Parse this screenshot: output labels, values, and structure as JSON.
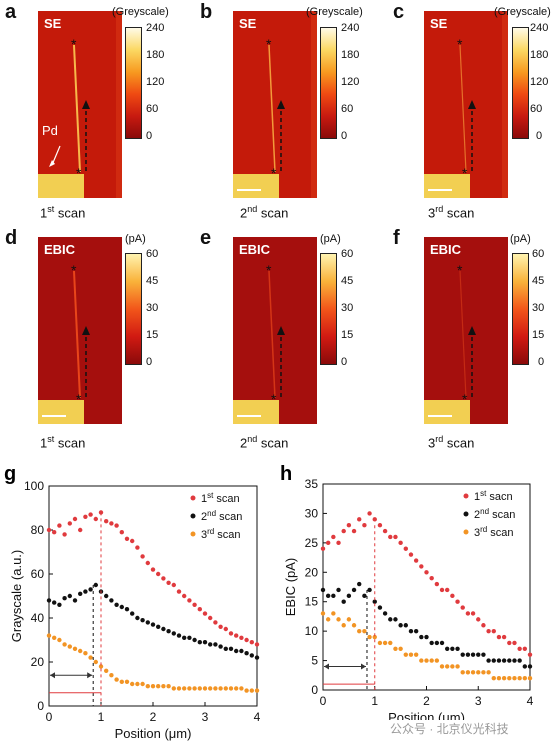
{
  "panels": {
    "a": {
      "label": "a",
      "mode": "SE",
      "unit": "(Greyscale)",
      "ticks": [
        "240",
        "180",
        "120",
        "60",
        "0"
      ],
      "scan_num": "1",
      "scan_sup": "st",
      "scan_word": "scan",
      "pd": "Pd"
    },
    "b": {
      "label": "b",
      "mode": "SE",
      "unit": "(Greyscale)",
      "ticks": [
        "240",
        "180",
        "120",
        "60",
        "0"
      ],
      "scan_num": "2",
      "scan_sup": "nd",
      "scan_word": "scan"
    },
    "c": {
      "label": "c",
      "mode": "SE",
      "unit": "(Greyscale)",
      "ticks": [
        "240",
        "180",
        "120",
        "60",
        "0"
      ],
      "scan_num": "3",
      "scan_sup": "rd",
      "scan_word": "scan"
    },
    "d": {
      "label": "d",
      "mode": "EBIC",
      "unit": "(pA)",
      "ticks": [
        "60",
        "45",
        "30",
        "15",
        "0"
      ],
      "scan_num": "1",
      "scan_sup": "st",
      "scan_word": "scan"
    },
    "e": {
      "label": "e",
      "mode": "EBIC",
      "unit": "(pA)",
      "ticks": [
        "60",
        "45",
        "30",
        "15",
        "0"
      ],
      "scan_num": "2",
      "scan_sup": "nd",
      "scan_word": "scan"
    },
    "f": {
      "label": "f",
      "mode": "EBIC",
      "unit": "(pA)",
      "ticks": [
        "60",
        "45",
        "30",
        "15",
        "0"
      ],
      "scan_num": "3",
      "scan_sup": "rd",
      "scan_word": "scan"
    }
  },
  "watermark": "公众号 · 北京仪光科技",
  "colors": {
    "scan1": "#e03a3e",
    "scan2": "#111111",
    "scan3": "#f29424",
    "marker": "#e03a3e"
  },
  "chart_data": [
    {
      "panel": "g",
      "type": "scatter",
      "xlabel": "Position (μm)",
      "ylabel": "Grayscale (a.u.)",
      "xlim": [
        0,
        4
      ],
      "ylim": [
        0,
        100
      ],
      "xticks": [
        "0",
        "1",
        "2",
        "3",
        "4"
      ],
      "yticks": [
        "0",
        "20",
        "40",
        "60",
        "80",
        "100"
      ],
      "legend_position": "top-right",
      "arrow": {
        "from": 0,
        "to": 0.85,
        "y": 14
      },
      "marker": {
        "from": 0,
        "to": 1.0,
        "y": 6
      },
      "vlines": [
        {
          "x": 0.85,
          "to": 55,
          "color": "#111111"
        },
        {
          "x": 1.0,
          "to": 88,
          "color": "#e03a3e"
        }
      ],
      "series": [
        {
          "name_num": "1",
          "name_sup": "st",
          "name_word": "scan",
          "color": "#e03a3e",
          "x": [
            0.0,
            0.1,
            0.2,
            0.3,
            0.4,
            0.5,
            0.6,
            0.7,
            0.8,
            0.9,
            1.0,
            1.1,
            1.2,
            1.3,
            1.4,
            1.5,
            1.6,
            1.7,
            1.8,
            1.9,
            2.0,
            2.1,
            2.2,
            2.3,
            2.4,
            2.5,
            2.6,
            2.7,
            2.8,
            2.9,
            3.0,
            3.1,
            3.2,
            3.3,
            3.4,
            3.5,
            3.6,
            3.7,
            3.8,
            3.9,
            4.0
          ],
          "y": [
            80,
            79,
            82,
            78,
            83,
            85,
            80,
            86,
            87,
            85,
            88,
            84,
            83,
            82,
            79,
            76,
            75,
            72,
            68,
            65,
            62,
            60,
            58,
            56,
            55,
            52,
            50,
            48,
            46,
            44,
            42,
            40,
            38,
            36,
            35,
            33,
            32,
            31,
            30,
            29,
            28
          ]
        },
        {
          "name_num": "2",
          "name_sup": "nd",
          "name_word": "scan",
          "color": "#111111",
          "x": [
            0.0,
            0.1,
            0.2,
            0.3,
            0.4,
            0.5,
            0.6,
            0.7,
            0.8,
            0.9,
            1.0,
            1.1,
            1.2,
            1.3,
            1.4,
            1.5,
            1.6,
            1.7,
            1.8,
            1.9,
            2.0,
            2.1,
            2.2,
            2.3,
            2.4,
            2.5,
            2.6,
            2.7,
            2.8,
            2.9,
            3.0,
            3.1,
            3.2,
            3.3,
            3.4,
            3.5,
            3.6,
            3.7,
            3.8,
            3.9,
            4.0
          ],
          "y": [
            48,
            47,
            46,
            49,
            50,
            48,
            51,
            52,
            53,
            55,
            52,
            50,
            48,
            46,
            45,
            44,
            42,
            40,
            39,
            38,
            37,
            36,
            35,
            34,
            33,
            32,
            31,
            31,
            30,
            29,
            29,
            28,
            28,
            27,
            26,
            26,
            25,
            25,
            24,
            23,
            22
          ]
        },
        {
          "name_num": "3",
          "name_sup": "rd",
          "name_word": "scan",
          "color": "#f29424",
          "x": [
            0.0,
            0.1,
            0.2,
            0.3,
            0.4,
            0.5,
            0.6,
            0.7,
            0.8,
            0.9,
            1.0,
            1.1,
            1.2,
            1.3,
            1.4,
            1.5,
            1.6,
            1.7,
            1.8,
            1.9,
            2.0,
            2.1,
            2.2,
            2.3,
            2.4,
            2.5,
            2.6,
            2.7,
            2.8,
            2.9,
            3.0,
            3.1,
            3.2,
            3.3,
            3.4,
            3.5,
            3.6,
            3.7,
            3.8,
            3.9,
            4.0
          ],
          "y": [
            32,
            31,
            30,
            28,
            27,
            26,
            25,
            24,
            22,
            20,
            18,
            16,
            14,
            12,
            11,
            11,
            10,
            10,
            10,
            9,
            9,
            9,
            9,
            9,
            8,
            8,
            8,
            8,
            8,
            8,
            8,
            8,
            8,
            8,
            8,
            8,
            8,
            8,
            7,
            7,
            7
          ]
        }
      ]
    },
    {
      "panel": "h",
      "type": "scatter",
      "xlabel": "Position (μm)",
      "ylabel": "EBIC (pA)",
      "xlim": [
        0,
        4
      ],
      "ylim": [
        0,
        35
      ],
      "xticks": [
        "0",
        "1",
        "2",
        "3",
        "4"
      ],
      "yticks": [
        "0",
        "5",
        "10",
        "15",
        "20",
        "25",
        "30",
        "35"
      ],
      "legend_position": "top-right",
      "arrow": {
        "from": 0,
        "to": 0.85,
        "y": 4
      },
      "marker": {
        "from": 0,
        "to": 1.0,
        "y": 1
      },
      "vlines": [
        {
          "x": 0.85,
          "to": 17,
          "color": "#111111"
        },
        {
          "x": 1.0,
          "to": 28,
          "color": "#e03a3e"
        }
      ],
      "series": [
        {
          "name_num": "1",
          "name_sup": "st",
          "name_word": "sacn",
          "color": "#e03a3e",
          "x": [
            0.0,
            0.1,
            0.2,
            0.3,
            0.4,
            0.5,
            0.6,
            0.7,
            0.8,
            0.9,
            1.0,
            1.1,
            1.2,
            1.3,
            1.4,
            1.5,
            1.6,
            1.7,
            1.8,
            1.9,
            2.0,
            2.1,
            2.2,
            2.3,
            2.4,
            2.5,
            2.6,
            2.7,
            2.8,
            2.9,
            3.0,
            3.1,
            3.2,
            3.3,
            3.4,
            3.5,
            3.6,
            3.7,
            3.8,
            3.9,
            4.0
          ],
          "y": [
            24,
            25,
            26,
            25,
            27,
            28,
            27,
            29,
            28,
            30,
            29,
            28,
            27,
            26,
            26,
            25,
            24,
            23,
            22,
            21,
            20,
            19,
            18,
            17,
            17,
            16,
            15,
            14,
            13,
            13,
            12,
            11,
            10,
            10,
            9,
            9,
            8,
            8,
            7,
            7,
            6
          ]
        },
        {
          "name_num": "2",
          "name_sup": "nd",
          "name_word": "scan",
          "color": "#111111",
          "x": [
            0.0,
            0.1,
            0.2,
            0.3,
            0.4,
            0.5,
            0.6,
            0.7,
            0.8,
            0.9,
            1.0,
            1.1,
            1.2,
            1.3,
            1.4,
            1.5,
            1.6,
            1.7,
            1.8,
            1.9,
            2.0,
            2.1,
            2.2,
            2.3,
            2.4,
            2.5,
            2.6,
            2.7,
            2.8,
            2.9,
            3.0,
            3.1,
            3.2,
            3.3,
            3.4,
            3.5,
            3.6,
            3.7,
            3.8,
            3.9,
            4.0
          ],
          "y": [
            17,
            16,
            16,
            17,
            15,
            16,
            17,
            18,
            16,
            17,
            15,
            14,
            13,
            12,
            12,
            11,
            11,
            10,
            10,
            9,
            9,
            8,
            8,
            8,
            7,
            7,
            7,
            6,
            6,
            6,
            6,
            6,
            5,
            5,
            5,
            5,
            5,
            5,
            5,
            4,
            4
          ]
        },
        {
          "name_num": "3",
          "name_sup": "rd",
          "name_word": "scan",
          "color": "#f29424",
          "x": [
            0.0,
            0.1,
            0.2,
            0.3,
            0.4,
            0.5,
            0.6,
            0.7,
            0.8,
            0.9,
            1.0,
            1.1,
            1.2,
            1.3,
            1.4,
            1.5,
            1.6,
            1.7,
            1.8,
            1.9,
            2.0,
            2.1,
            2.2,
            2.3,
            2.4,
            2.5,
            2.6,
            2.7,
            2.8,
            2.9,
            3.0,
            3.1,
            3.2,
            3.3,
            3.4,
            3.5,
            3.6,
            3.7,
            3.8,
            3.9,
            4.0
          ],
          "y": [
            13,
            12,
            13,
            12,
            11,
            12,
            11,
            10,
            10,
            9,
            9,
            8,
            8,
            8,
            7,
            7,
            6,
            6,
            6,
            5,
            5,
            5,
            5,
            4,
            4,
            4,
            4,
            3,
            3,
            3,
            3,
            3,
            3,
            2,
            2,
            2,
            2,
            2,
            2,
            2,
            2
          ]
        }
      ]
    }
  ]
}
